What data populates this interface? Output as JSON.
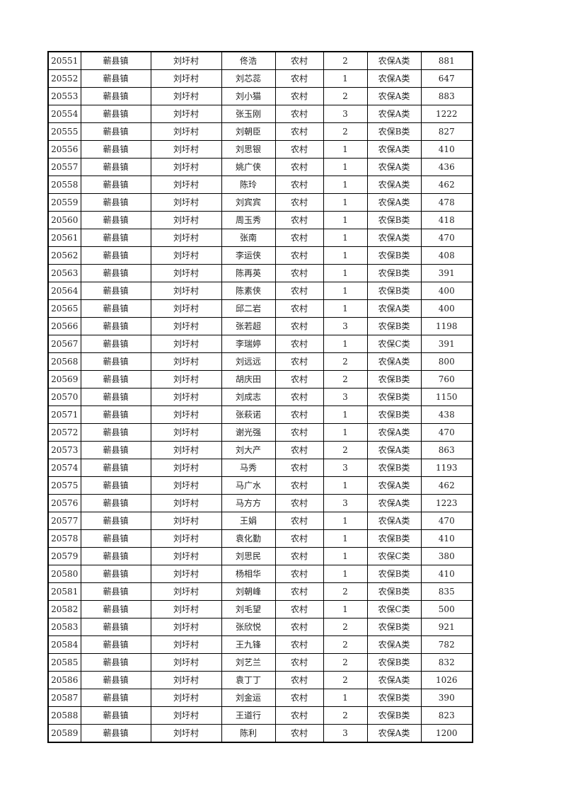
{
  "rows": [
    [
      "20551",
      "蕲县镇",
      "刘圩村",
      "佟浩",
      "农村",
      "2",
      "农保A类",
      "881"
    ],
    [
      "20552",
      "蕲县镇",
      "刘圩村",
      "刘芯蕊",
      "农村",
      "1",
      "农保A类",
      "647"
    ],
    [
      "20553",
      "蕲县镇",
      "刘圩村",
      "刘小猫",
      "农村",
      "2",
      "农保A类",
      "883"
    ],
    [
      "20554",
      "蕲县镇",
      "刘圩村",
      "张玉刚",
      "农村",
      "3",
      "农保A类",
      "1222"
    ],
    [
      "20555",
      "蕲县镇",
      "刘圩村",
      "刘朝臣",
      "农村",
      "2",
      "农保B类",
      "827"
    ],
    [
      "20556",
      "蕲县镇",
      "刘圩村",
      "刘思银",
      "农村",
      "1",
      "农保A类",
      "410"
    ],
    [
      "20557",
      "蕲县镇",
      "刘圩村",
      "姚广侠",
      "农村",
      "1",
      "农保A类",
      "436"
    ],
    [
      "20558",
      "蕲县镇",
      "刘圩村",
      "陈玲",
      "农村",
      "1",
      "农保A类",
      "462"
    ],
    [
      "20559",
      "蕲县镇",
      "刘圩村",
      "刘宾宾",
      "农村",
      "1",
      "农保A类",
      "478"
    ],
    [
      "20560",
      "蕲县镇",
      "刘圩村",
      "周玉秀",
      "农村",
      "1",
      "农保B类",
      "418"
    ],
    [
      "20561",
      "蕲县镇",
      "刘圩村",
      "张南",
      "农村",
      "1",
      "农保A类",
      "470"
    ],
    [
      "20562",
      "蕲县镇",
      "刘圩村",
      "李运侠",
      "农村",
      "1",
      "农保B类",
      "408"
    ],
    [
      "20563",
      "蕲县镇",
      "刘圩村",
      "陈再英",
      "农村",
      "1",
      "农保B类",
      "391"
    ],
    [
      "20564",
      "蕲县镇",
      "刘圩村",
      "陈素侠",
      "农村",
      "1",
      "农保B类",
      "400"
    ],
    [
      "20565",
      "蕲县镇",
      "刘圩村",
      "邱二岩",
      "农村",
      "1",
      "农保A类",
      "400"
    ],
    [
      "20566",
      "蕲县镇",
      "刘圩村",
      "张若超",
      "农村",
      "3",
      "农保B类",
      "1198"
    ],
    [
      "20567",
      "蕲县镇",
      "刘圩村",
      "李瑞婷",
      "农村",
      "1",
      "农保C类",
      "391"
    ],
    [
      "20568",
      "蕲县镇",
      "刘圩村",
      "刘远远",
      "农村",
      "2",
      "农保A类",
      "800"
    ],
    [
      "20569",
      "蕲县镇",
      "刘圩村",
      "胡庆田",
      "农村",
      "2",
      "农保B类",
      "760"
    ],
    [
      "20570",
      "蕲县镇",
      "刘圩村",
      "刘成志",
      "农村",
      "3",
      "农保B类",
      "1150"
    ],
    [
      "20571",
      "蕲县镇",
      "刘圩村",
      "张萩诺",
      "农村",
      "1",
      "农保B类",
      "438"
    ],
    [
      "20572",
      "蕲县镇",
      "刘圩村",
      "谢光强",
      "农村",
      "1",
      "农保A类",
      "470"
    ],
    [
      "20573",
      "蕲县镇",
      "刘圩村",
      "刘大产",
      "农村",
      "2",
      "农保A类",
      "863"
    ],
    [
      "20574",
      "蕲县镇",
      "刘圩村",
      "马秀",
      "农村",
      "3",
      "农保B类",
      "1193"
    ],
    [
      "20575",
      "蕲县镇",
      "刘圩村",
      "马广水",
      "农村",
      "1",
      "农保A类",
      "462"
    ],
    [
      "20576",
      "蕲县镇",
      "刘圩村",
      "马方方",
      "农村",
      "3",
      "农保A类",
      "1223"
    ],
    [
      "20577",
      "蕲县镇",
      "刘圩村",
      "王娟",
      "农村",
      "1",
      "农保A类",
      "470"
    ],
    [
      "20578",
      "蕲县镇",
      "刘圩村",
      "袁化勤",
      "农村",
      "1",
      "农保B类",
      "410"
    ],
    [
      "20579",
      "蕲县镇",
      "刘圩村",
      "刘思民",
      "农村",
      "1",
      "农保C类",
      "380"
    ],
    [
      "20580",
      "蕲县镇",
      "刘圩村",
      "杨相华",
      "农村",
      "1",
      "农保B类",
      "410"
    ],
    [
      "20581",
      "蕲县镇",
      "刘圩村",
      "刘朝峰",
      "农村",
      "2",
      "农保B类",
      "835"
    ],
    [
      "20582",
      "蕲县镇",
      "刘圩村",
      "刘毛望",
      "农村",
      "1",
      "农保C类",
      "500"
    ],
    [
      "20583",
      "蕲县镇",
      "刘圩村",
      "张欣悦",
      "农村",
      "2",
      "农保B类",
      "921"
    ],
    [
      "20584",
      "蕲县镇",
      "刘圩村",
      "王九锋",
      "农村",
      "2",
      "农保A类",
      "782"
    ],
    [
      "20585",
      "蕲县镇",
      "刘圩村",
      "刘艺兰",
      "农村",
      "2",
      "农保B类",
      "832"
    ],
    [
      "20586",
      "蕲县镇",
      "刘圩村",
      "袁丁丁",
      "农村",
      "2",
      "农保A类",
      "1026"
    ],
    [
      "20587",
      "蕲县镇",
      "刘圩村",
      "刘金运",
      "农村",
      "1",
      "农保B类",
      "390"
    ],
    [
      "20588",
      "蕲县镇",
      "刘圩村",
      "王道行",
      "农村",
      "2",
      "农保B类",
      "823"
    ],
    [
      "20589",
      "蕲县镇",
      "刘圩村",
      "陈利",
      "农村",
      "3",
      "农保A类",
      "1200"
    ]
  ]
}
